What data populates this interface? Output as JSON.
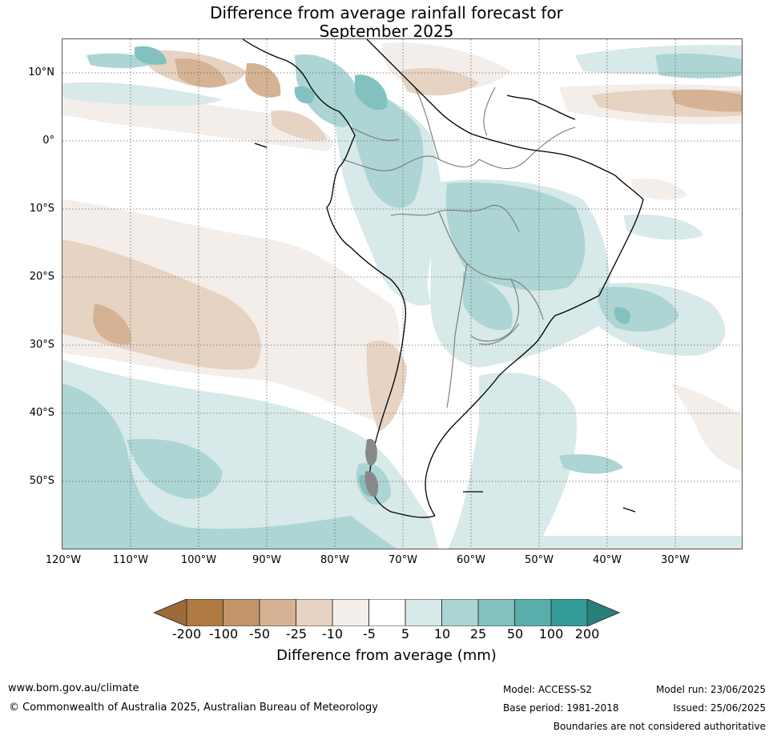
{
  "title": {
    "line1": "Difference from average rainfall forecast for",
    "line2": "September 2025"
  },
  "map": {
    "lat_labels": [
      "10°N",
      "0°",
      "10°S",
      "20°S",
      "30°S",
      "40°S",
      "50°S"
    ],
    "lon_labels": [
      "120°W",
      "110°W",
      "100°W",
      "90°W",
      "80°W",
      "70°W",
      "60°W",
      "50°W",
      "40°W",
      "30°W"
    ],
    "extent": {
      "lon_min": -120,
      "lon_max": -20,
      "lat_min": -60,
      "lat_max": 15
    },
    "gridlines": "dotted"
  },
  "legend": {
    "title": "Difference from average (mm)",
    "ticks": [
      "-200",
      "-100",
      "-50",
      "-25",
      "-10",
      "-5",
      "5",
      "10",
      "25",
      "50",
      "100",
      "200"
    ],
    "colors": [
      "#9e6a3c",
      "#b07a43",
      "#c29468",
      "#d4b293",
      "#e6d3c2",
      "#f3eee9",
      "#ffffff",
      "#d7e9e8",
      "#acd5d4",
      "#82c1c0",
      "#5aaeac",
      "#339b98",
      "#2a7f7c"
    ],
    "extend": "both"
  },
  "footer": {
    "url": "www.bom.gov.au/climate",
    "copyright": "© Commonwealth of Australia 2025, Australian Bureau of Meteorology",
    "model": "Model: ACCESS-S2",
    "base_period": "Base period: 1981-2018",
    "model_run": "Model run: 23/06/2025",
    "issued": "Issued: 25/06/2025",
    "disclaimer": "Boundaries are not considered authoritative"
  }
}
